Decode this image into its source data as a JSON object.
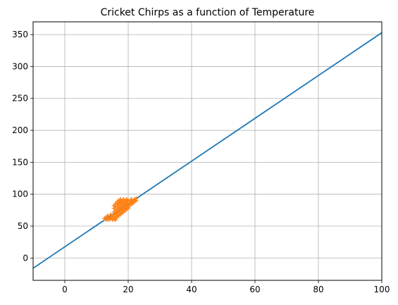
{
  "chart_data": {
    "type": "scatter",
    "title": "Cricket Chirps as a function of Temperature",
    "xlabel": "",
    "ylabel": "",
    "xlim": [
      -10,
      100
    ],
    "ylim": [
      -35,
      370
    ],
    "xticks": [
      0,
      20,
      40,
      60,
      80,
      100
    ],
    "yticks": [
      0,
      50,
      100,
      150,
      200,
      250,
      300,
      350
    ],
    "grid": true,
    "series": [
      {
        "kind": "line",
        "color": "#1f77b4",
        "x": [
          -10,
          100
        ],
        "y": [
          -16,
          353
        ]
      },
      {
        "kind": "scatter",
        "marker": "plus",
        "color": "#ff7f0e",
        "points": [
          [
            12.5,
            62
          ],
          [
            13.0,
            60
          ],
          [
            13.0,
            64
          ],
          [
            13.5,
            61
          ],
          [
            13.5,
            66
          ],
          [
            14.0,
            60
          ],
          [
            14.0,
            63
          ],
          [
            14.5,
            62
          ],
          [
            14.5,
            68
          ],
          [
            15.0,
            60
          ],
          [
            15.0,
            64
          ],
          [
            15.0,
            66
          ],
          [
            15.5,
            61
          ],
          [
            15.5,
            65
          ],
          [
            15.5,
            72
          ],
          [
            15.5,
            78
          ],
          [
            15.5,
            82
          ],
          [
            16.0,
            60
          ],
          [
            16.0,
            63
          ],
          [
            16.0,
            68
          ],
          [
            16.0,
            70
          ],
          [
            16.0,
            75
          ],
          [
            16.0,
            80
          ],
          [
            16.0,
            85
          ],
          [
            16.5,
            64
          ],
          [
            16.5,
            67
          ],
          [
            16.5,
            72
          ],
          [
            16.5,
            76
          ],
          [
            16.5,
            80
          ],
          [
            16.5,
            84
          ],
          [
            16.5,
            88
          ],
          [
            17.0,
            66
          ],
          [
            17.0,
            70
          ],
          [
            17.0,
            74
          ],
          [
            17.0,
            78
          ],
          [
            17.0,
            82
          ],
          [
            17.0,
            86
          ],
          [
            17.0,
            90
          ],
          [
            17.5,
            68
          ],
          [
            17.5,
            72
          ],
          [
            17.5,
            76
          ],
          [
            17.5,
            80
          ],
          [
            17.5,
            85
          ],
          [
            17.5,
            88
          ],
          [
            17.5,
            92
          ],
          [
            18.0,
            70
          ],
          [
            18.0,
            74
          ],
          [
            18.0,
            78
          ],
          [
            18.0,
            82
          ],
          [
            18.0,
            86
          ],
          [
            18.0,
            90
          ],
          [
            18.5,
            72
          ],
          [
            18.5,
            76
          ],
          [
            18.5,
            80
          ],
          [
            18.5,
            84
          ],
          [
            18.5,
            88
          ],
          [
            18.5,
            92
          ],
          [
            19.0,
            74
          ],
          [
            19.0,
            78
          ],
          [
            19.0,
            82
          ],
          [
            19.0,
            86
          ],
          [
            19.0,
            90
          ],
          [
            19.5,
            76
          ],
          [
            19.5,
            80
          ],
          [
            19.5,
            84
          ],
          [
            19.5,
            88
          ],
          [
            19.5,
            92
          ],
          [
            20.0,
            78
          ],
          [
            20.0,
            82
          ],
          [
            20.0,
            86
          ],
          [
            20.0,
            90
          ],
          [
            20.5,
            82
          ],
          [
            20.5,
            86
          ],
          [
            20.5,
            90
          ],
          [
            21.0,
            84
          ],
          [
            21.0,
            88
          ],
          [
            21.0,
            92
          ],
          [
            21.5,
            86
          ],
          [
            21.5,
            90
          ],
          [
            22.0,
            88
          ],
          [
            22.0,
            92
          ],
          [
            22.5,
            90
          ],
          [
            22.5,
            93
          ]
        ]
      }
    ]
  }
}
